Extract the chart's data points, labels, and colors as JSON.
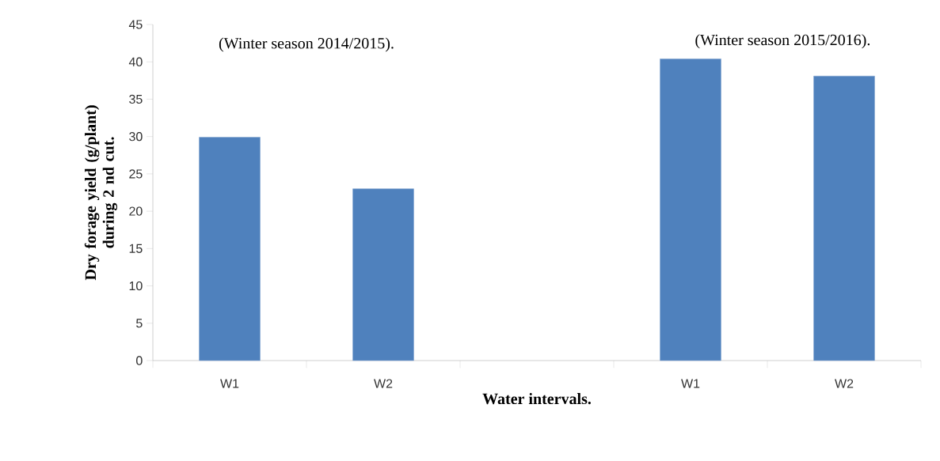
{
  "chart_data": {
    "type": "bar",
    "xlabel": "Water intervals.",
    "ylabel": "Dry forage yield (g/plant) during 2 nd cut.",
    "annotations": [
      "(Winter season 2014/2015).",
      "(Winter season 2015/2016)."
    ],
    "categories": [
      "W1",
      "W2",
      null,
      "W1",
      "W2"
    ],
    "values": [
      29.9,
      23.0,
      null,
      40.4,
      38.1
    ],
    "color": "#4f81bd",
    "ylim": [
      0,
      45
    ],
    "yticks": [
      0,
      5,
      10,
      15,
      20,
      25,
      30,
      35,
      40,
      45
    ],
    "grid": false
  }
}
